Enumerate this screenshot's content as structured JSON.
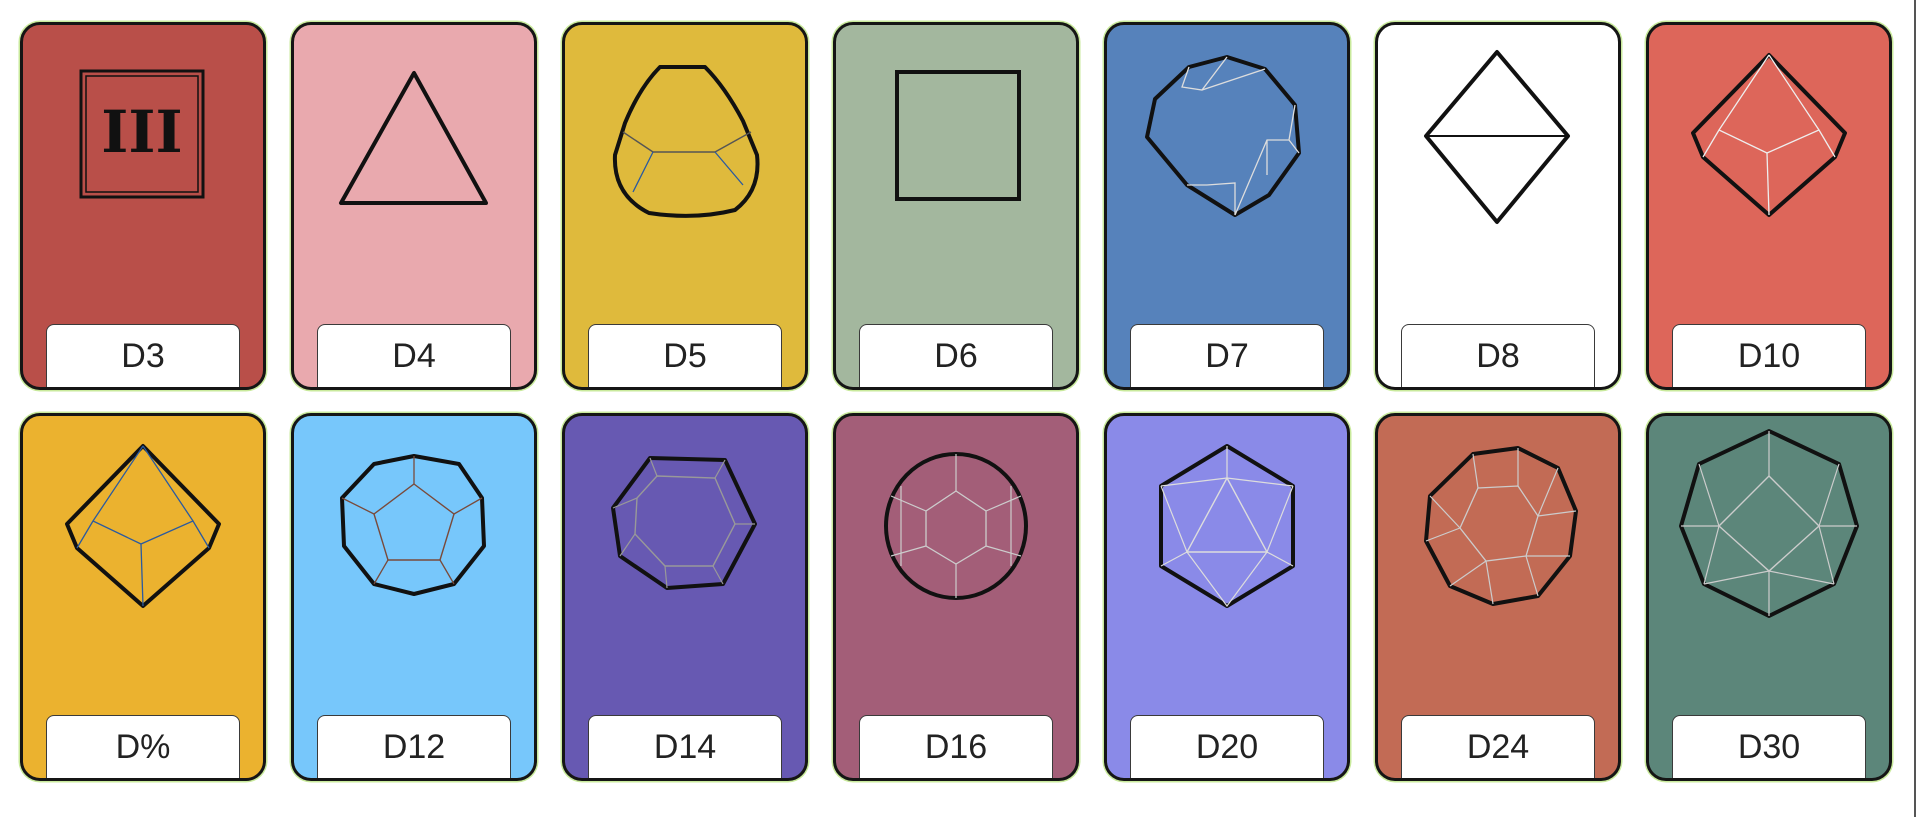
{
  "cards": [
    {
      "label": "D3",
      "bg": "#b94f49",
      "glyph": "III"
    },
    {
      "label": "D4",
      "bg": "#e9a9ae"
    },
    {
      "label": "D5",
      "bg": "#dfba3c"
    },
    {
      "label": "D6",
      "bg": "#a3b79e"
    },
    {
      "label": "D7",
      "bg": "#5682bb"
    },
    {
      "label": "D8",
      "bg": "#ffffff"
    },
    {
      "label": "D10",
      "bg": "#dd665a"
    },
    {
      "label": "D%",
      "bg": "#ebb22f"
    },
    {
      "label": "D12",
      "bg": "#77c7fb"
    },
    {
      "label": "D14",
      "bg": "#6759b2"
    },
    {
      "label": "D16",
      "bg": "#a35e78"
    },
    {
      "label": "D20",
      "bg": "#8a8ae8"
    },
    {
      "label": "D24",
      "bg": "#c26b55"
    },
    {
      "label": "D30",
      "bg": "#5c867a"
    }
  ]
}
